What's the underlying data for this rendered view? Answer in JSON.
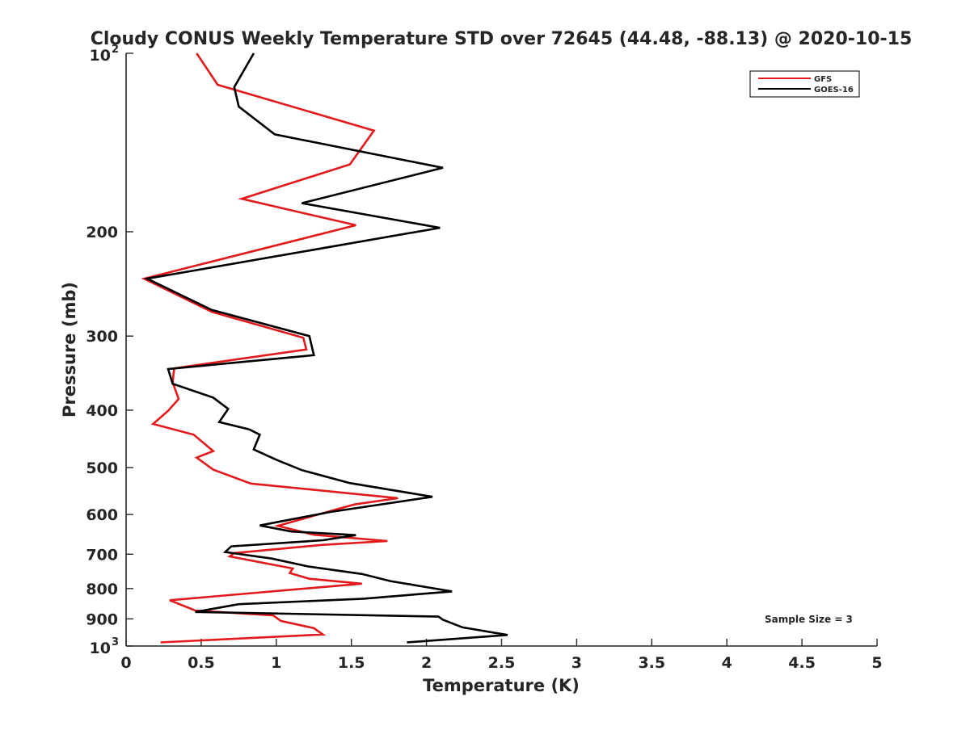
{
  "chart_data": {
    "type": "line",
    "title": "Cloudy CONUS Weekly Temperature STD over 72645 (44.48, -88.13) @ 2020-10-15",
    "xlabel": "Temperature (K)",
    "ylabel": "Pressure (mb)",
    "xlim": [
      0,
      5
    ],
    "ylim": [
      100,
      1000
    ],
    "y_scale": "log",
    "y_reversed": true,
    "grid": false,
    "legend_position": "top-right",
    "x_ticks": [
      {
        "value": 0,
        "label": "0"
      },
      {
        "value": 0.5,
        "label": "0.5"
      },
      {
        "value": 1,
        "label": "1"
      },
      {
        "value": 1.5,
        "label": "1.5"
      },
      {
        "value": 2,
        "label": "2"
      },
      {
        "value": 2.5,
        "label": "2.5"
      },
      {
        "value": 3,
        "label": "3"
      },
      {
        "value": 3.5,
        "label": "3.5"
      },
      {
        "value": 4,
        "label": "4"
      },
      {
        "value": 4.5,
        "label": "4.5"
      },
      {
        "value": 5,
        "label": "5"
      }
    ],
    "y_ticks": [
      {
        "value": 100,
        "base": "10",
        "exp": "2"
      },
      {
        "value": 200,
        "label": "200"
      },
      {
        "value": 300,
        "label": "300"
      },
      {
        "value": 400,
        "label": "400"
      },
      {
        "value": 500,
        "label": "500"
      },
      {
        "value": 600,
        "label": "600"
      },
      {
        "value": 700,
        "label": "700"
      },
      {
        "value": 800,
        "label": "800"
      },
      {
        "value": 900,
        "label": "900"
      },
      {
        "value": 1000,
        "base": "10",
        "exp": "3"
      }
    ],
    "annotation": "Sample Size = 3",
    "series": [
      {
        "name": "GFS",
        "color": "#e31a1c",
        "x": [
          0.47,
          0.61,
          1.65,
          1.49,
          0.77,
          1.53,
          0.12,
          0.57,
          1.18,
          1.2,
          0.32,
          0.31,
          0.35,
          0.28,
          0.18,
          0.45,
          0.58,
          0.47,
          0.58,
          0.83,
          1.81,
          1.52,
          1.32,
          1.01,
          1.25,
          1.74,
          1.31,
          0.72,
          0.69,
          1.11,
          1.09,
          1.22,
          1.57,
          0.29,
          0.46,
          0.98,
          1.03,
          1.25,
          1.31,
          0.23
        ],
        "y": [
          100,
          113,
          135,
          154,
          176,
          195,
          240,
          273,
          302,
          316,
          340,
          359,
          383,
          401,
          422,
          440,
          469,
          481,
          504,
          532,
          563,
          577,
          596,
          627,
          649,
          665,
          675,
          697,
          706,
          740,
          753,
          770,
          785,
          837,
          871,
          888,
          907,
          933,
          956,
          986
        ]
      },
      {
        "name": "GOES-16",
        "color": "#000000",
        "x": [
          0.85,
          0.72,
          0.75,
          0.99,
          2.11,
          1.17,
          2.09,
          0.14,
          0.57,
          1.22,
          1.25,
          0.28,
          0.31,
          0.58,
          0.68,
          0.62,
          0.82,
          0.89,
          0.85,
          1.0,
          1.17,
          1.49,
          2.04,
          1.36,
          0.89,
          1.1,
          1.53,
          1.31,
          0.7,
          0.66,
          0.97,
          1.21,
          1.57,
          1.76,
          2.17,
          1.58,
          0.75,
          0.46,
          2.08,
          2.11,
          2.24,
          2.54,
          1.87
        ],
        "y": [
          100,
          114,
          123,
          137,
          156,
          179,
          197,
          240,
          271,
          300,
          323,
          341,
          361,
          381,
          398,
          419,
          431,
          440,
          466,
          485,
          505,
          531,
          560,
          594,
          626,
          641,
          650,
          663,
          679,
          694,
          712,
          734,
          756,
          777,
          809,
          832,
          850,
          876,
          892,
          903,
          930,
          958,
          986
        ]
      }
    ]
  }
}
